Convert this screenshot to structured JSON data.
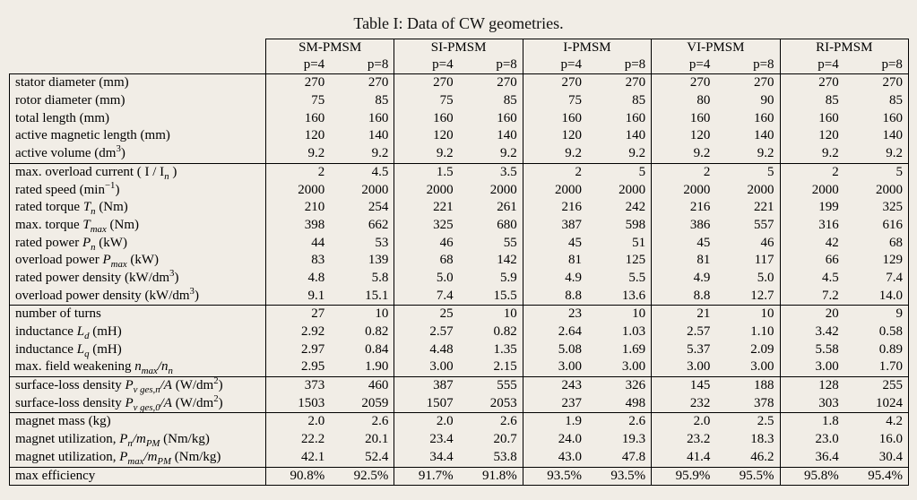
{
  "caption": "Table I: Data of CW geometries.",
  "font": {
    "family": "Times New Roman",
    "caption_size_pt": 14,
    "body_size_pt": 11
  },
  "colors": {
    "text": "#000000",
    "border": "#000000",
    "background": "#f1ede6"
  },
  "columns": {
    "groups": [
      "SM-PMSM",
      "SI-PMSM",
      "I-PMSM",
      "VI-PMSM",
      "RI-PMSM"
    ],
    "sub": [
      "p=4",
      "p=8"
    ]
  },
  "sections": [
    {
      "rows": [
        {
          "label_html": "stator diameter (mm)",
          "vals": [
            "270",
            "270",
            "270",
            "270",
            "270",
            "270",
            "270",
            "270",
            "270",
            "270"
          ]
        },
        {
          "label_html": "rotor diameter (mm)",
          "vals": [
            "75",
            "85",
            "75",
            "85",
            "75",
            "85",
            "80",
            "90",
            "85",
            "85"
          ]
        },
        {
          "label_html": "total length (mm)",
          "vals": [
            "160",
            "160",
            "160",
            "160",
            "160",
            "160",
            "160",
            "160",
            "160",
            "160"
          ]
        },
        {
          "label_html": "active magnetic length (mm)",
          "vals": [
            "120",
            "140",
            "120",
            "140",
            "120",
            "140",
            "120",
            "140",
            "120",
            "140"
          ]
        },
        {
          "label_html": "active volume (dm<sup>3</sup>)",
          "vals": [
            "9.2",
            "9.2",
            "9.2",
            "9.2",
            "9.2",
            "9.2",
            "9.2",
            "9.2",
            "9.2",
            "9.2"
          ]
        }
      ]
    },
    {
      "rows": [
        {
          "label_html": "max. overload current ( I / I<sub><span class=\"ital\">n</span></sub> )",
          "vals": [
            "2",
            "4.5",
            "1.5",
            "3.5",
            "2",
            "5",
            "2",
            "5",
            "2",
            "5"
          ]
        },
        {
          "label_html": "rated speed (min<sup>−1</sup>)",
          "vals": [
            "2000",
            "2000",
            "2000",
            "2000",
            "2000",
            "2000",
            "2000",
            "2000",
            "2000",
            "2000"
          ]
        },
        {
          "label_html": "rated torque <span class=\"ital\">T<sub>n</sub></span> (Nm)",
          "vals": [
            "210",
            "254",
            "221",
            "261",
            "216",
            "242",
            "216",
            "221",
            "199",
            "325"
          ]
        },
        {
          "label_html": "max. torque <span class=\"ital\">T<sub>max</sub></span> (Nm)",
          "vals": [
            "398",
            "662",
            "325",
            "680",
            "387",
            "598",
            "386",
            "557",
            "316",
            "616"
          ]
        },
        {
          "label_html": "rated power <span class=\"ital\">P<sub>n</sub></span> (kW)",
          "vals": [
            "44",
            "53",
            "46",
            "55",
            "45",
            "51",
            "45",
            "46",
            "42",
            "68"
          ]
        },
        {
          "label_html": "overload power <span class=\"ital\">P<sub>max</sub></span> (kW)",
          "vals": [
            "83",
            "139",
            "68",
            "142",
            "81",
            "125",
            "81",
            "117",
            "66",
            "129"
          ]
        },
        {
          "label_html": "rated power density (kW/dm<sup>3</sup>)",
          "vals": [
            "4.8",
            "5.8",
            "5.0",
            "5.9",
            "4.9",
            "5.5",
            "4.9",
            "5.0",
            "4.5",
            "7.4"
          ]
        },
        {
          "label_html": "overload power density (kW/dm<sup>3</sup>)",
          "vals": [
            "9.1",
            "15.1",
            "7.4",
            "15.5",
            "8.8",
            "13.6",
            "8.8",
            "12.7",
            "7.2",
            "14.0"
          ]
        }
      ]
    },
    {
      "rows": [
        {
          "label_html": "number of turns",
          "vals": [
            "27",
            "10",
            "25",
            "10",
            "23",
            "10",
            "21",
            "10",
            "20",
            "9"
          ]
        },
        {
          "label_html": "inductance <span class=\"ital\">L<sub>d</sub></span> (mH)",
          "vals": [
            "2.92",
            "0.82",
            "2.57",
            "0.82",
            "2.64",
            "1.03",
            "2.57",
            "1.10",
            "3.42",
            "0.58"
          ]
        },
        {
          "label_html": "inductance <span class=\"ital\">L<sub>q</sub></span> (mH)",
          "vals": [
            "2.97",
            "0.84",
            "4.48",
            "1.35",
            "5.08",
            "1.69",
            "5.37",
            "2.09",
            "5.58",
            "0.89"
          ]
        },
        {
          "label_html": "max. field weakening <span class=\"ital\">n<sub>max</sub>/n<sub>n</sub></span>",
          "vals": [
            "2.95",
            "1.90",
            "3.00",
            "2.15",
            "3.00",
            "3.00",
            "3.00",
            "3.00",
            "3.00",
            "1.70"
          ]
        }
      ]
    },
    {
      "rows": [
        {
          "label_html": "surface-loss density <span class=\"ital\">P<sub>v ges,n</sub>/A</span> (W/dm<sup>2</sup>)",
          "vals": [
            "373",
            "460",
            "387",
            "555",
            "243",
            "326",
            "145",
            "188",
            "128",
            "255"
          ]
        },
        {
          "label_html": "surface-loss density <span class=\"ital\">P<sub>v ges,0</sub>/A</span> (W/dm<sup>2</sup>)",
          "vals": [
            "1503",
            "2059",
            "1507",
            "2053",
            "237",
            "498",
            "232",
            "378",
            "303",
            "1024"
          ]
        }
      ]
    },
    {
      "rows": [
        {
          "label_html": "magnet mass (kg)",
          "vals": [
            "2.0",
            "2.6",
            "2.0",
            "2.6",
            "1.9",
            "2.6",
            "2.0",
            "2.5",
            "1.8",
            "4.2"
          ]
        },
        {
          "label_html": "magnet utilization, <span class=\"ital\">P<sub>n</sub>/m<sub>PM</sub></span> (Nm/kg)",
          "vals": [
            "22.2",
            "20.1",
            "23.4",
            "20.7",
            "24.0",
            "19.3",
            "23.2",
            "18.3",
            "23.0",
            "16.0"
          ]
        },
        {
          "label_html": "magnet utilization, <span class=\"ital\">P<sub>max</sub>/m<sub>PM</sub></span> (Nm/kg)",
          "vals": [
            "42.1",
            "52.4",
            "34.4",
            "53.8",
            "43.0",
            "47.8",
            "41.4",
            "46.2",
            "36.4",
            "30.4"
          ]
        }
      ]
    },
    {
      "rows": [
        {
          "label_html": "max efficiency",
          "vals": [
            "90.8%",
            "92.5%",
            "91.7%",
            "91.8%",
            "93.5%",
            "93.5%",
            "95.9%",
            "95.5%",
            "95.8%",
            "95.4%"
          ]
        }
      ]
    }
  ]
}
